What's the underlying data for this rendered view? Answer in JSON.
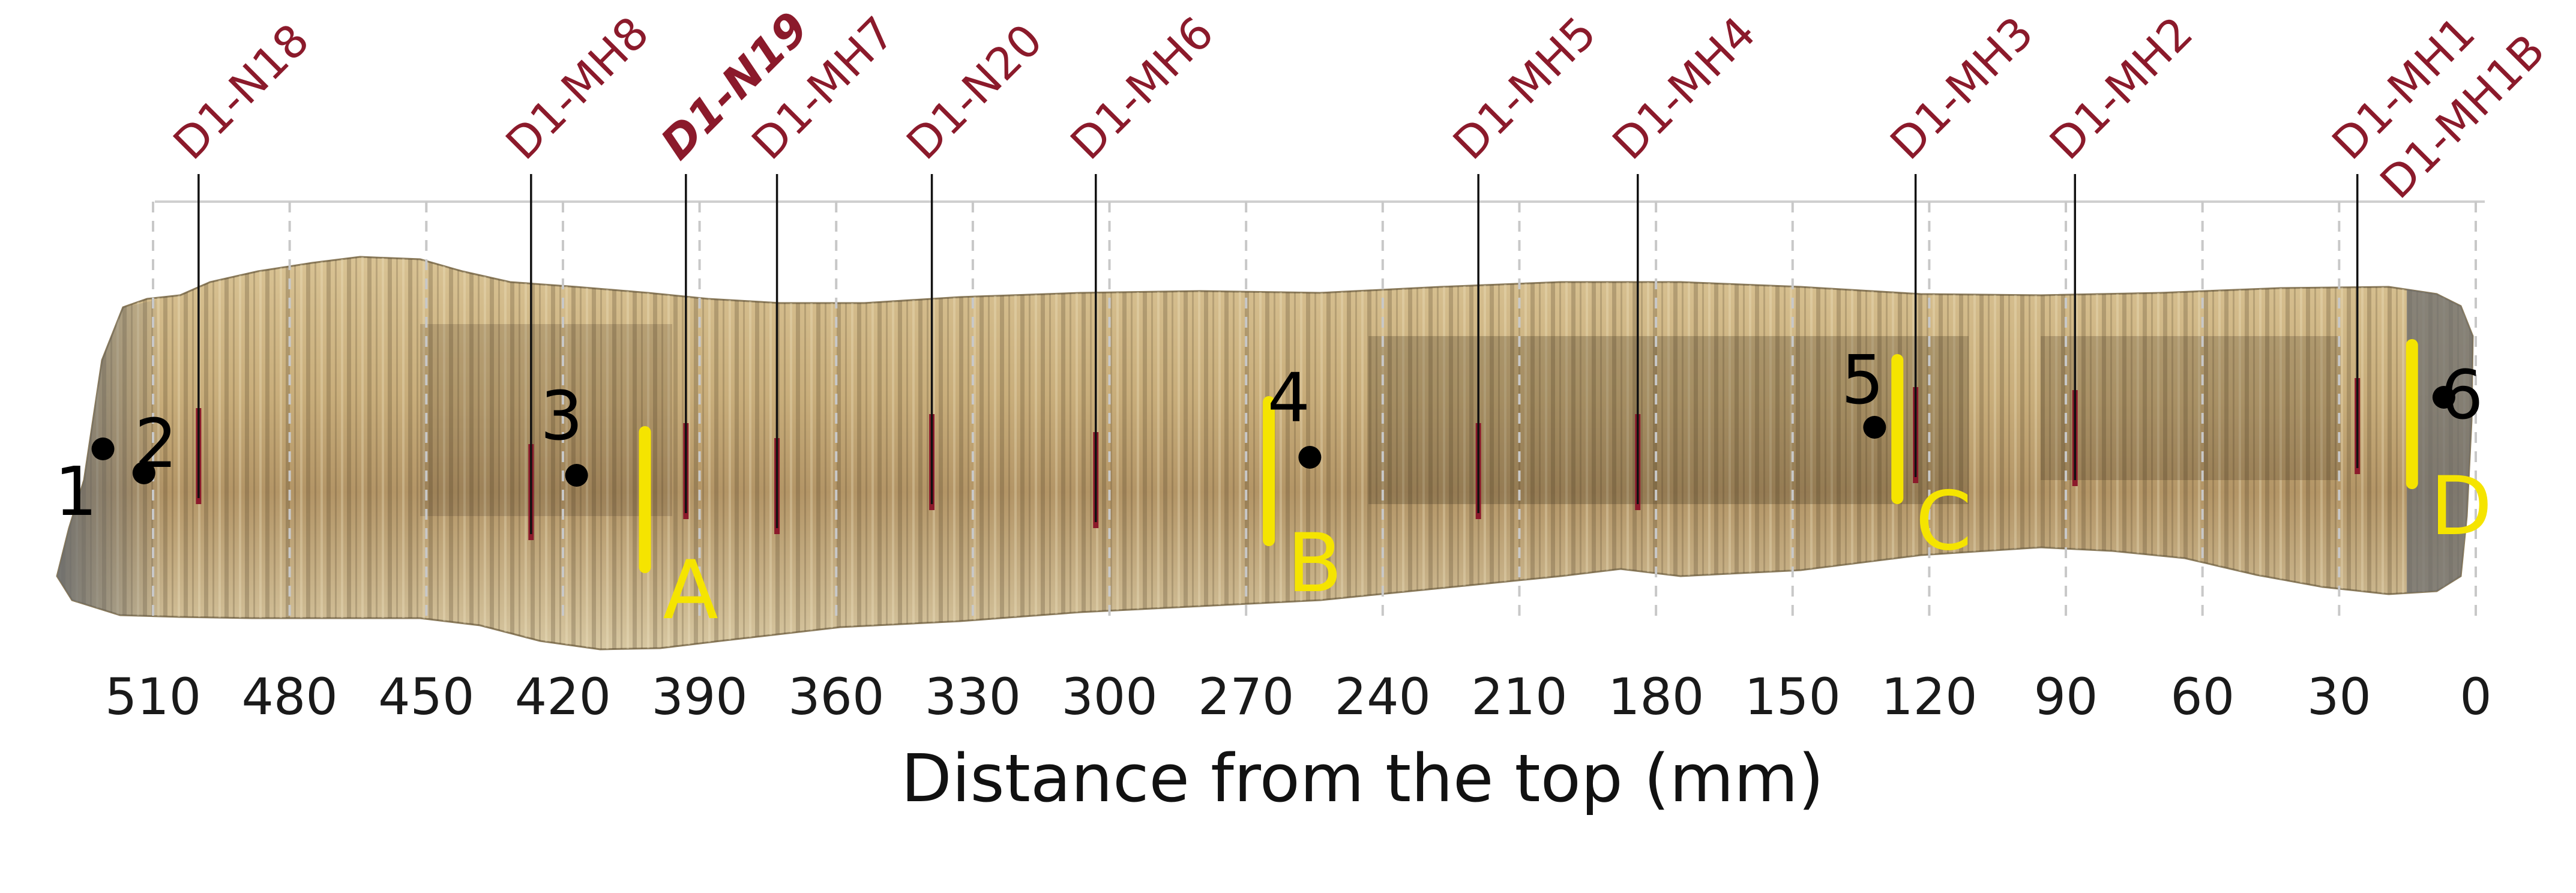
{
  "figure": {
    "xlabel": "Distance from the top (mm)",
    "x_direction": "reversed",
    "x_ticks": [
      "510",
      "480",
      "450",
      "420",
      "390",
      "360",
      "330",
      "300",
      "270",
      "240",
      "210",
      "180",
      "150",
      "120",
      "90",
      "60",
      "30",
      "0"
    ],
    "tick_values": [
      510,
      480,
      450,
      420,
      390,
      360,
      330,
      300,
      270,
      240,
      210,
      180,
      150,
      120,
      90,
      60,
      30,
      0
    ],
    "gridlines": "dashed vertical at every 30 mm",
    "colors": {
      "sample_marker": "#8b1a2b",
      "zone_bar": "#f5e400",
      "point": "#000000",
      "grid": "#c8c8c8",
      "specimen_light": "#e2cfa2",
      "specimen_dark": "#5a4a30"
    }
  },
  "chart_data": {
    "type": "annotated-specimen-section",
    "samples": [
      {
        "label": "D1-N18",
        "position_mm": 500,
        "highlighted": false
      },
      {
        "label": "D1-MH8",
        "position_mm": 427,
        "highlighted": false
      },
      {
        "label": "D1-N19",
        "position_mm": 393,
        "highlighted": true
      },
      {
        "label": "D1-MH7",
        "position_mm": 373,
        "highlighted": false
      },
      {
        "label": "D1-N20",
        "position_mm": 339,
        "highlighted": false
      },
      {
        "label": "D1-MH6",
        "position_mm": 303,
        "highlighted": false
      },
      {
        "label": "D1-MH5",
        "position_mm": 219,
        "highlighted": false
      },
      {
        "label": "D1-MH4",
        "position_mm": 184,
        "highlighted": false
      },
      {
        "label": "D1-MH3",
        "position_mm": 123,
        "highlighted": false
      },
      {
        "label": "D1-MH2",
        "position_mm": 88,
        "highlighted": false
      },
      {
        "label": "D1-MH1",
        "position_mm": 26,
        "highlighted": false
      },
      {
        "label": "D1-MH1B",
        "position_mm": 26,
        "highlighted": false
      }
    ],
    "points": [
      {
        "label": "1",
        "position_mm": 521
      },
      {
        "label": "2",
        "position_mm": 512
      },
      {
        "label": "3",
        "position_mm": 417
      },
      {
        "label": "4",
        "position_mm": 256
      },
      {
        "label": "5",
        "position_mm": 132
      },
      {
        "label": "6",
        "position_mm": 7
      }
    ],
    "zones": [
      {
        "label": "A",
        "position_mm": 402
      },
      {
        "label": "B",
        "position_mm": 265
      },
      {
        "label": "C",
        "position_mm": 127
      },
      {
        "label": "D",
        "position_mm": 14
      }
    ]
  }
}
